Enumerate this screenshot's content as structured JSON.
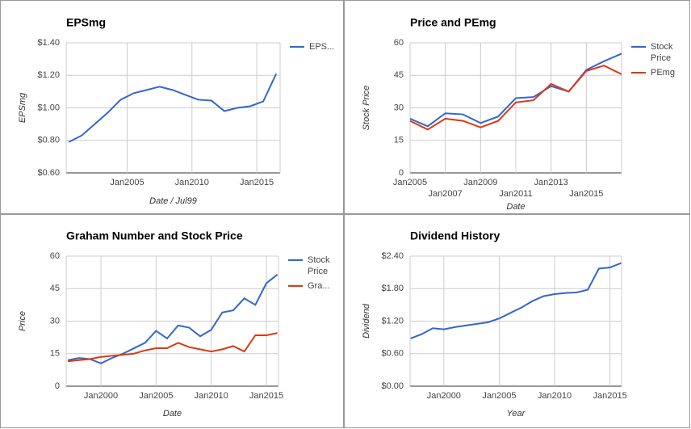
{
  "chart_data": [
    {
      "type": "line",
      "title": "EPSmg",
      "x_label": "Date / Jul99",
      "y_label": "EPSmg",
      "x": [
        2000.5,
        2001.5,
        2002.5,
        2003.5,
        2004.5,
        2005.5,
        2006.5,
        2007.5,
        2008.5,
        2009.5,
        2010.5,
        2011.5,
        2012.5,
        2013.5,
        2014.5,
        2015.5,
        2016.5
      ],
      "series": [
        {
          "name": "EPS...",
          "color": "#3366cc",
          "values": [
            0.79,
            0.83,
            0.9,
            0.97,
            1.05,
            1.09,
            1.11,
            1.13,
            1.11,
            1.08,
            1.05,
            1.045,
            0.98,
            1.0,
            1.01,
            1.04,
            1.21
          ]
        }
      ],
      "xlim": [
        2000.3,
        2016.8
      ],
      "xticks": [
        {
          "value": 2005,
          "label": "Jan2005"
        },
        {
          "value": 2010,
          "label": "Jan2010"
        },
        {
          "value": 2015,
          "label": "Jan2015"
        }
      ],
      "ylim": [
        0.6,
        1.4
      ],
      "yticks": [
        {
          "value": 0.6,
          "label": "$0.60"
        },
        {
          "value": 0.8,
          "label": "$0.80"
        },
        {
          "value": 1.0,
          "label": "$1.00"
        },
        {
          "value": 1.2,
          "label": "$1.20"
        },
        {
          "value": 1.4,
          "label": "$1.40"
        }
      ],
      "grid": true,
      "legend": "right"
    },
    {
      "type": "line",
      "title": "Price and PEmg",
      "x_label": "Date",
      "y_label": "Stock Price",
      "x": [
        2005,
        2006,
        2007,
        2008,
        2009,
        2010,
        2011,
        2012,
        2013,
        2014,
        2015,
        2016,
        2017
      ],
      "series": [
        {
          "name": "Stock Price",
          "color": "#3366cc",
          "values": [
            25,
            21.5,
            27.5,
            27,
            23,
            26,
            34.5,
            35,
            40,
            37.5,
            47.5,
            51.5,
            55
          ]
        },
        {
          "name": "PEmg",
          "color": "#dc3912",
          "values": [
            24,
            20,
            25,
            24,
            21,
            24,
            32.5,
            33.5,
            41,
            37.5,
            47,
            49.5,
            45.5
          ]
        }
      ],
      "xlim": [
        2005,
        2017
      ],
      "xticks": [
        {
          "value": 2005,
          "label": "Jan2005"
        },
        {
          "value": 2007,
          "label": "Jan2007"
        },
        {
          "value": 2009,
          "label": "Jan2009"
        },
        {
          "value": 2011,
          "label": "Jan2011"
        },
        {
          "value": 2013,
          "label": "Jan2013"
        },
        {
          "value": 2015,
          "label": "Jan2015"
        }
      ],
      "ylim": [
        0,
        60
      ],
      "yticks": [
        0,
        15,
        30,
        45,
        60
      ],
      "grid": true,
      "legend": "right"
    },
    {
      "type": "line",
      "title": "Graham Number and Stock Price",
      "x_label": "Date",
      "y_label": "Price",
      "x": [
        1997,
        1998,
        1999,
        2000,
        2001,
        2002,
        2003,
        2004,
        2005,
        2006,
        2007,
        2008,
        2009,
        2010,
        2011,
        2012,
        2013,
        2014,
        2015,
        2016
      ],
      "series": [
        {
          "name": "Stock Price",
          "color": "#3366cc",
          "values": [
            12,
            13,
            12.5,
            10.5,
            13,
            15,
            17.5,
            20,
            25.5,
            22,
            28,
            27,
            23,
            26,
            34,
            35,
            40.5,
            37.5,
            47.5,
            51.5
          ]
        },
        {
          "name": "Gra...",
          "color": "#dc3912",
          "values": [
            11.5,
            12,
            12.5,
            13.5,
            14,
            14.5,
            15,
            16.5,
            17.5,
            17.5,
            20,
            18,
            17,
            16,
            17,
            18.5,
            16,
            23.5,
            23.5,
            24.5
          ]
        }
      ],
      "xlim": [
        1996.85,
        2016.1
      ],
      "xticks": [
        {
          "value": 2000,
          "label": "Jan2000"
        },
        {
          "value": 2005,
          "label": "Jan2005"
        },
        {
          "value": 2010,
          "label": "Jan2010"
        },
        {
          "value": 2015,
          "label": "Jan2015"
        }
      ],
      "ylim": [
        0,
        60
      ],
      "yticks": [
        0,
        15,
        30,
        45,
        60
      ],
      "grid": true,
      "legend": "right"
    },
    {
      "type": "line",
      "title": "Dividend History",
      "x_label": "Year",
      "y_label": "Dividend",
      "x": [
        1997,
        1998,
        1999,
        2000,
        2001,
        2002,
        2003,
        2004,
        2005,
        2006,
        2007,
        2008,
        2009,
        2010,
        2011,
        2012,
        2013,
        2014,
        2015,
        2016
      ],
      "series": [
        {
          "color": "#3366cc",
          "values": [
            0.88,
            0.96,
            1.07,
            1.05,
            1.09,
            1.12,
            1.15,
            1.18,
            1.25,
            1.35,
            1.45,
            1.57,
            1.66,
            1.7,
            1.72,
            1.73,
            1.78,
            2.17,
            2.19,
            2.27
          ]
        }
      ],
      "xlim": [
        1996.95,
        2016.05
      ],
      "xticks": [
        {
          "value": 2000,
          "label": "Jan2000"
        },
        {
          "value": 2005,
          "label": "Jan2005"
        },
        {
          "value": 2010,
          "label": "Jan2010"
        },
        {
          "value": 2015,
          "label": "Jan2015"
        }
      ],
      "ylim": [
        0,
        2.4
      ],
      "yticks": [
        {
          "value": 0,
          "label": "$0.00"
        },
        {
          "value": 0.6,
          "label": "$0.60"
        },
        {
          "value": 1.2,
          "label": "$1.20"
        },
        {
          "value": 1.8,
          "label": "$1.80"
        },
        {
          "value": 2.4,
          "label": "$2.40"
        }
      ],
      "grid": true
    }
  ]
}
